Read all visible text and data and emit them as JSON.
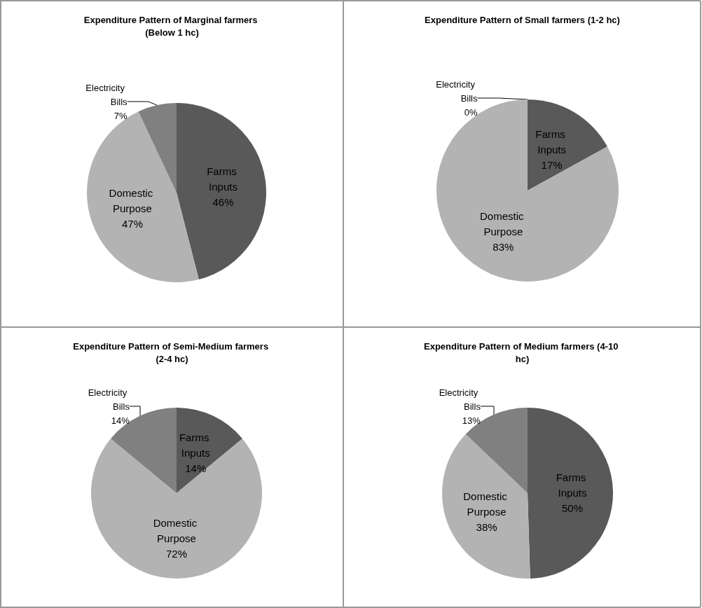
{
  "chart_data": [
    {
      "type": "pie",
      "title": "Expenditure Pattern of Marginal farmers (Below 1 hc)",
      "categories": [
        "Farms Inputs",
        "Domestic Purpose",
        "Electricity Bills"
      ],
      "values": [
        46,
        47,
        7
      ],
      "value_labels": [
        "46%",
        "47%",
        "7%"
      ],
      "colors": [
        "#595959",
        "#b3b3b3",
        "#808080"
      ],
      "legend": false
    },
    {
      "type": "pie",
      "title": "Expenditure Pattern of Small farmers (1-2 hc)",
      "categories": [
        "Farms Inputs",
        "Domestic Purpose",
        "Electricity Bills"
      ],
      "values": [
        17,
        83,
        0
      ],
      "value_labels": [
        "17%",
        "83%",
        "0%"
      ],
      "colors": [
        "#595959",
        "#b3b3b3",
        "#808080"
      ],
      "legend": false
    },
    {
      "type": "pie",
      "title": "Expenditure Pattern of Semi-Medium farmers (2-4 hc)",
      "categories": [
        "Farms Inputs",
        "Domestic Purpose",
        "Electricity Bills"
      ],
      "values": [
        14,
        72,
        14
      ],
      "value_labels": [
        "14%",
        "72%",
        "14%"
      ],
      "colors": [
        "#595959",
        "#b3b3b3",
        "#808080"
      ],
      "legend": false
    },
    {
      "type": "pie",
      "title": "Expenditure Pattern of Medium farmers (4-10 hc)",
      "categories": [
        "Farms Inputs",
        "Domestic Purpose",
        "Electricity Bills"
      ],
      "values": [
        50,
        38,
        13
      ],
      "value_labels": [
        "50%",
        "38%",
        "13%"
      ],
      "colors": [
        "#595959",
        "#b3b3b3",
        "#808080"
      ],
      "legend": false
    }
  ]
}
